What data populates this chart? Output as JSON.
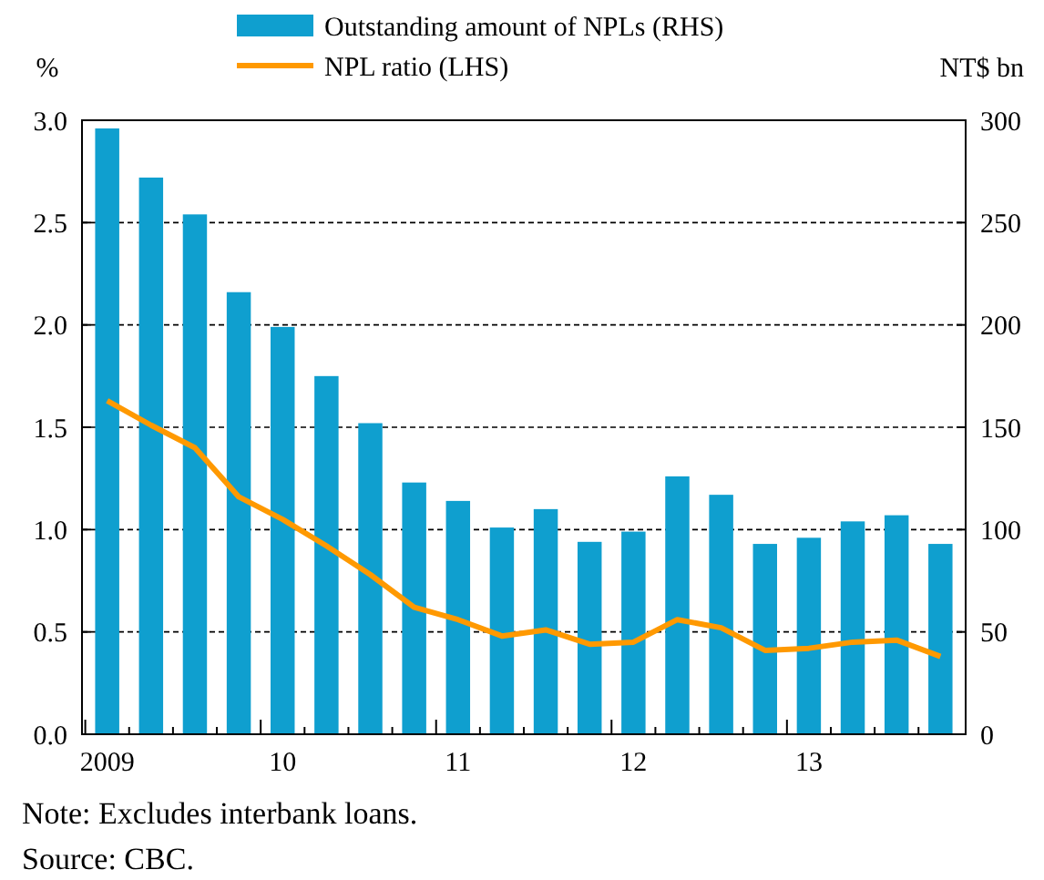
{
  "chart_data": {
    "type": "bar",
    "ylabel": "%",
    "y2label": "NT$ bn",
    "categories": [
      "2009",
      null,
      null,
      null,
      "10",
      null,
      null,
      null,
      "11",
      null,
      null,
      null,
      "12",
      null,
      null,
      null,
      "13",
      null,
      null,
      null
    ],
    "series": [
      {
        "name": "Outstanding amount of NPLs (RHS)",
        "axis": "y2",
        "color": "#0f9fcf",
        "values": [
          296,
          272,
          254,
          216,
          199,
          175,
          152,
          123,
          114,
          101,
          110,
          94,
          99,
          126,
          117,
          93,
          96,
          104,
          107,
          93
        ]
      },
      {
        "name": "NPL ratio (LHS)",
        "type": "line",
        "axis": "y",
        "color": "#ff9900",
        "values": [
          1.63,
          1.51,
          1.4,
          1.16,
          1.05,
          0.92,
          0.78,
          0.62,
          0.56,
          0.48,
          0.51,
          0.44,
          0.45,
          0.56,
          0.52,
          0.41,
          0.42,
          0.45,
          0.46,
          0.38
        ]
      }
    ],
    "ylim": [
      0,
      3
    ],
    "yticks": [
      {
        "value": 0,
        "label": "0.0"
      },
      {
        "value": 0.5,
        "label": "0.5"
      },
      {
        "value": 1,
        "label": "1.0"
      },
      {
        "value": 1.5,
        "label": "1.5"
      },
      {
        "value": 2,
        "label": "2.0"
      },
      {
        "value": 2.5,
        "label": "2.5"
      },
      {
        "value": 3,
        "label": "3.0"
      }
    ],
    "y2lim": [
      0,
      300
    ],
    "y2ticks": [
      0,
      50,
      100,
      150,
      200,
      250,
      300
    ],
    "grid": "y",
    "legend": "top",
    "marker": "none",
    "line_style": "solid",
    "annotations": [
      "Note: Excludes interbank loans.",
      "Source: CBC."
    ]
  }
}
